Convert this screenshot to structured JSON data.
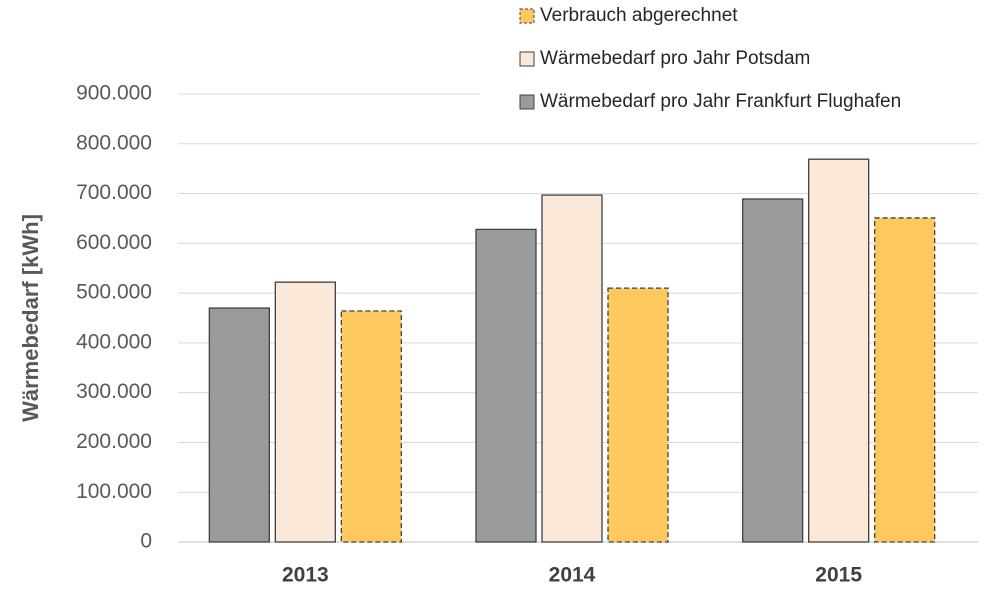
{
  "chart_data": {
    "type": "bar",
    "y_label": "Wärmebedarf [kWh]",
    "categories": [
      "2013",
      "2014",
      "2015"
    ],
    "series": [
      {
        "name": "Wärmebedarf pro Jahr Frankfurt Flughafen",
        "color": "#9b9b9b",
        "values": [
          470000,
          628000,
          689000
        ]
      },
      {
        "name": "Wärmebedarf pro Jahr Potsdam",
        "color": "#fbe8d8",
        "values": [
          522000,
          697000,
          769000
        ]
      },
      {
        "name": "Verbrauch abgerechnet",
        "color": "#fdc95e",
        "border": "dashed",
        "values": [
          464000,
          510000,
          651000
        ]
      }
    ],
    "ylim": [
      0,
      900000
    ],
    "yticks": [
      0,
      {
        "value": 100000,
        "label": "100.000"
      },
      {
        "value": 200000,
        "label": "200.000"
      },
      {
        "value": 300000,
        "label": "300.000"
      },
      {
        "value": 400000,
        "label": "400.000"
      },
      {
        "value": 500000,
        "label": "500.000"
      },
      {
        "value": 600000,
        "label": "600.000"
      },
      {
        "value": 700000,
        "label": "700.000"
      },
      {
        "value": 800000,
        "label": "800.000"
      },
      {
        "value": 900000,
        "label": "900.000"
      }
    ],
    "grid": true,
    "legend": "top-right"
  }
}
